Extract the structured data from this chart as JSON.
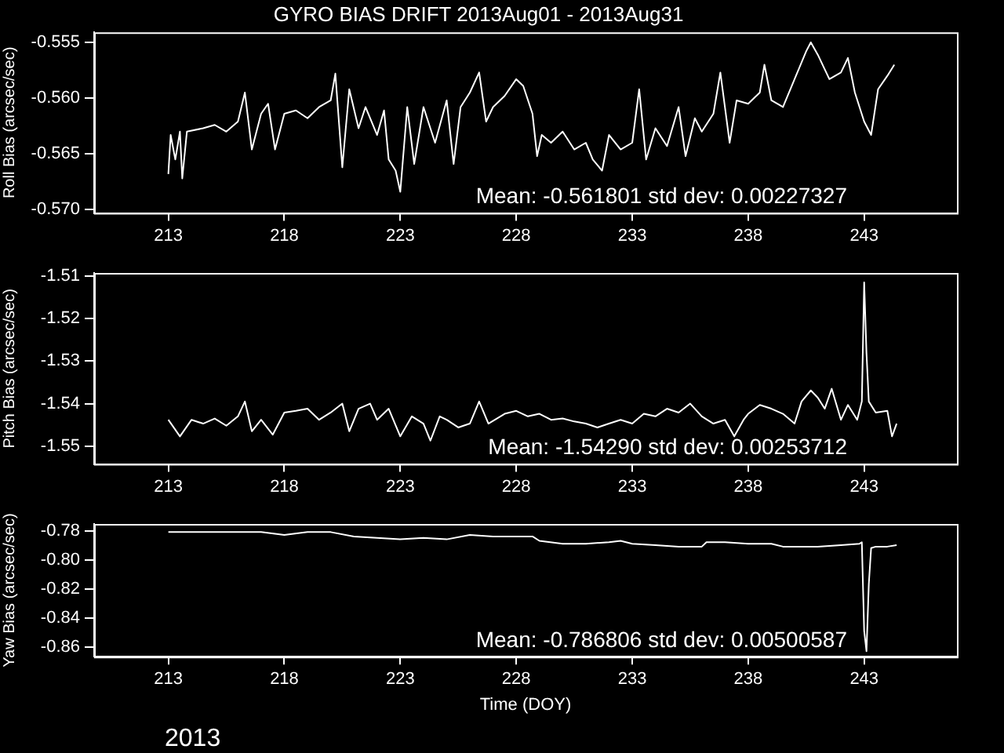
{
  "chart_data": [
    {
      "type": "line",
      "title": "GYRO BIAS DRIFT 2013Aug01 - 2013Aug31",
      "ylabel": "Roll Bias (arcsec/sec)",
      "annotations": [
        "Mean: -0.561801 std dev: 0.00227327"
      ],
      "xlim": [
        209.8,
        247
      ],
      "xticks": [
        213,
        218,
        223,
        228,
        233,
        238,
        243
      ],
      "ylim": [
        -0.5703,
        -0.5541
      ],
      "yticks": [
        -0.555,
        {
          "value": -0.56,
          "label": "-0.560"
        },
        -0.565,
        {
          "value": -0.57,
          "label": "-0.570"
        }
      ],
      "grid": false,
      "legend": false,
      "marker": "none",
      "line_style": "solid",
      "series": [
        {
          "color": "#ffffff",
          "x": [
            213.0,
            213.1,
            213.3,
            213.5,
            213.6,
            213.8,
            214.5,
            215.0,
            215.5,
            216.0,
            216.3,
            216.6,
            217.0,
            217.3,
            217.6,
            218.0,
            218.5,
            219.0,
            219.5,
            220.0,
            220.2,
            220.5,
            220.8,
            221.2,
            221.5,
            222.0,
            222.3,
            222.5,
            222.8,
            223.0,
            223.3,
            223.6,
            224.0,
            224.5,
            225.0,
            225.3,
            225.6,
            226.0,
            226.4,
            226.7,
            227.0,
            227.5,
            228.0,
            228.3,
            228.7,
            228.9,
            229.1,
            229.5,
            230.0,
            230.5,
            231.0,
            231.3,
            231.7,
            232.0,
            232.5,
            233.0,
            233.3,
            233.6,
            234.0,
            234.5,
            235.0,
            235.3,
            235.7,
            236.0,
            236.5,
            236.8,
            237.2,
            237.5,
            238.0,
            238.5,
            238.7,
            239.0,
            239.5,
            240.0,
            240.5,
            240.7,
            241.0,
            241.5,
            242.0,
            242.3,
            242.6,
            243.0,
            243.3,
            243.6,
            244.0,
            244.3
          ],
          "values": [
            -0.5668,
            -0.5633,
            -0.5655,
            -0.563,
            -0.5672,
            -0.563,
            -0.5627,
            -0.5624,
            -0.563,
            -0.5621,
            -0.5595,
            -0.5646,
            -0.5614,
            -0.5605,
            -0.5646,
            -0.5614,
            -0.5611,
            -0.5618,
            -0.5608,
            -0.5602,
            -0.5578,
            -0.5662,
            -0.5592,
            -0.5627,
            -0.5608,
            -0.5633,
            -0.5611,
            -0.5655,
            -0.5665,
            -0.5684,
            -0.5608,
            -0.5659,
            -0.5608,
            -0.564,
            -0.5602,
            -0.5659,
            -0.5608,
            -0.5595,
            -0.5577,
            -0.5621,
            -0.5608,
            -0.5598,
            -0.5583,
            -0.5589,
            -0.5614,
            -0.5652,
            -0.5633,
            -0.564,
            -0.563,
            -0.5646,
            -0.564,
            -0.5655,
            -0.5665,
            -0.5633,
            -0.5646,
            -0.564,
            -0.5592,
            -0.5655,
            -0.5627,
            -0.5643,
            -0.5608,
            -0.5652,
            -0.5618,
            -0.563,
            -0.5614,
            -0.5577,
            -0.564,
            -0.5602,
            -0.5605,
            -0.5595,
            -0.557,
            -0.5602,
            -0.5608,
            -0.5583,
            -0.5558,
            -0.555,
            -0.5561,
            -0.5583,
            -0.5577,
            -0.5564,
            -0.5595,
            -0.5621,
            -0.5633,
            -0.5592,
            -0.558,
            -0.557
          ]
        }
      ]
    },
    {
      "type": "line",
      "ylabel": "Pitch Bias (arcsec/sec)",
      "annotations": [
        "Mean: -1.54290 std dev: 0.00253712"
      ],
      "xlim": [
        209.8,
        247
      ],
      "xticks": [
        213,
        218,
        223,
        228,
        233,
        238,
        243
      ],
      "ylim": [
        -1.5542,
        -1.5093
      ],
      "yticks": [
        -1.51,
        -1.52,
        -1.53,
        -1.54,
        -1.55
      ],
      "grid": false,
      "legend": false,
      "marker": "none",
      "line_style": "solid",
      "series": [
        {
          "color": "#ffffff",
          "x": [
            213.0,
            213.5,
            214.0,
            214.5,
            215.0,
            215.5,
            216.0,
            216.3,
            216.6,
            217.0,
            217.5,
            218.0,
            218.5,
            219.0,
            219.5,
            220.0,
            220.5,
            220.8,
            221.2,
            221.7,
            222.0,
            222.5,
            223.0,
            223.5,
            224.0,
            224.3,
            224.7,
            225.0,
            225.5,
            226.0,
            226.4,
            226.8,
            227.5,
            228.0,
            228.5,
            229.0,
            229.5,
            230.0,
            230.5,
            231.0,
            231.5,
            232.0,
            232.5,
            233.0,
            233.5,
            234.0,
            234.5,
            235.0,
            235.5,
            236.0,
            236.5,
            237.0,
            237.4,
            237.8,
            238.0,
            238.5,
            239.0,
            239.5,
            240.0,
            240.3,
            240.7,
            241.0,
            241.3,
            241.6,
            242.0,
            242.3,
            242.7,
            242.9,
            243.0,
            243.1,
            243.2,
            243.5,
            244.0,
            244.2,
            244.4
          ],
          "values": [
            -1.5438,
            -1.5477,
            -1.5438,
            -1.5447,
            -1.5435,
            -1.5452,
            -1.543,
            -1.5395,
            -1.5465,
            -1.5438,
            -1.5473,
            -1.5421,
            -1.5417,
            -1.5412,
            -1.5438,
            -1.5421,
            -1.54,
            -1.5465,
            -1.5412,
            -1.54,
            -1.5438,
            -1.5412,
            -1.5477,
            -1.543,
            -1.5447,
            -1.5487,
            -1.543,
            -1.5438,
            -1.5456,
            -1.5447,
            -1.5395,
            -1.5447,
            -1.5424,
            -1.5417,
            -1.543,
            -1.5424,
            -1.5438,
            -1.5435,
            -1.5442,
            -1.5447,
            -1.5456,
            -1.5447,
            -1.5438,
            -1.5447,
            -1.5424,
            -1.543,
            -1.5412,
            -1.5421,
            -1.54,
            -1.543,
            -1.5447,
            -1.5438,
            -1.5477,
            -1.5438,
            -1.5424,
            -1.5403,
            -1.5412,
            -1.5424,
            -1.5447,
            -1.5395,
            -1.5369,
            -1.5386,
            -1.5412,
            -1.5365,
            -1.5438,
            -1.5403,
            -1.5438,
            -1.5395,
            -1.5115,
            -1.5281,
            -1.5395,
            -1.5421,
            -1.5417,
            -1.5477,
            -1.5447
          ]
        }
      ]
    },
    {
      "type": "line",
      "ylabel": "Yaw Bias (arcsec/sec)",
      "xlabel": "Time (DOY)",
      "annotations": [
        "Mean: -0.786806 std dev: 0.00500587",
        "2013"
      ],
      "xlim": [
        209.8,
        247
      ],
      "xticks": [
        213,
        218,
        223,
        228,
        233,
        238,
        243
      ],
      "ylim": [
        -0.8668,
        -0.7754
      ],
      "yticks": [
        -0.78,
        {
          "value": -0.8,
          "label": "-0.80"
        },
        -0.82,
        -0.84,
        -0.86
      ],
      "grid": false,
      "legend": false,
      "marker": "none",
      "line_style": "solid",
      "series": [
        {
          "color": "#ffffff",
          "x": [
            213,
            215,
            217,
            218,
            219,
            220,
            221,
            222,
            223,
            224,
            225,
            226,
            227,
            228,
            228.7,
            229,
            230,
            231,
            232,
            232.5,
            233,
            234,
            235,
            236,
            236.2,
            237,
            238,
            239,
            239.5,
            240,
            241,
            242,
            242.8,
            242.9,
            243.0,
            243.1,
            243.2,
            243.3,
            243.5,
            244,
            244.4
          ],
          "values": [
            -0.781,
            -0.781,
            -0.781,
            -0.783,
            -0.781,
            -0.781,
            -0.784,
            -0.785,
            -0.786,
            -0.785,
            -0.786,
            -0.783,
            -0.784,
            -0.784,
            -0.784,
            -0.787,
            -0.789,
            -0.789,
            -0.788,
            -0.787,
            -0.789,
            -0.79,
            -0.791,
            -0.791,
            -0.788,
            -0.788,
            -0.789,
            -0.789,
            -0.791,
            -0.791,
            -0.791,
            -0.79,
            -0.789,
            -0.788,
            -0.849,
            -0.863,
            -0.817,
            -0.792,
            -0.791,
            -0.791,
            -0.79
          ]
        }
      ]
    }
  ]
}
